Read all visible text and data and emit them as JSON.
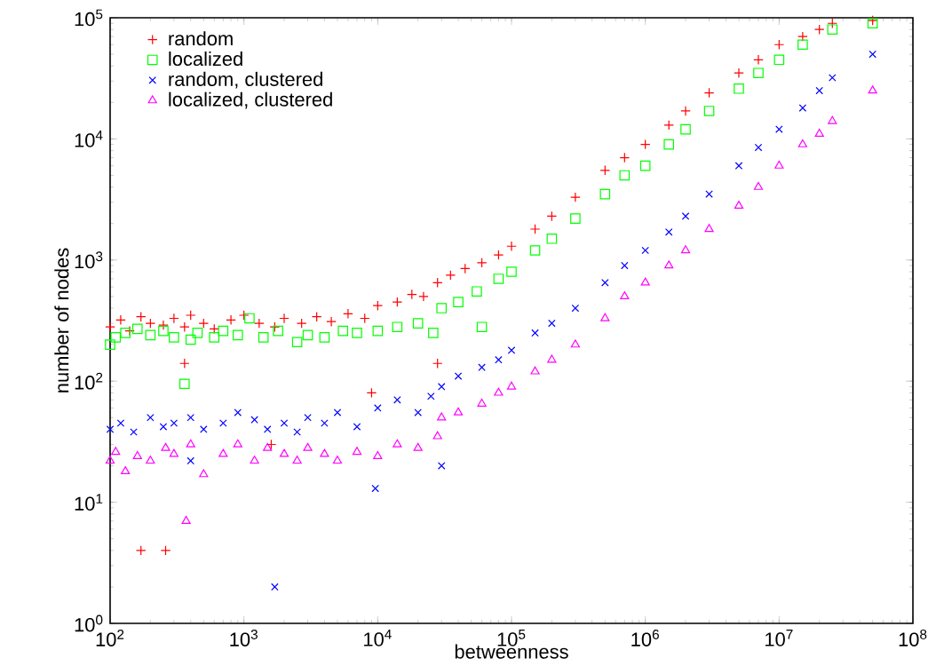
{
  "chart_data": {
    "type": "scatter",
    "xlabel": "betweenness",
    "ylabel": "number of nodes",
    "log": "xy",
    "legend": "top left",
    "xlim": [
      100,
      100000000
    ],
    "ylim": [
      1,
      100000
    ],
    "xticks": [
      {
        "value": 100,
        "label": "10$^{2}$"
      },
      {
        "value": 1000,
        "label": "10$^{3}$"
      },
      {
        "value": 10000,
        "label": "10$^{4}$"
      },
      {
        "value": 100000,
        "label": "10$^{5}$"
      },
      {
        "value": 1000000,
        "label": "10$^{6}$"
      },
      {
        "value": 10000000,
        "label": "10$^{7}$"
      },
      {
        "value": 100000000,
        "label": "10$^{8}$"
      }
    ],
    "yticks": [
      {
        "value": 1,
        "label": "10$^{0}$"
      },
      {
        "value": 10,
        "label": "10$^{1}$"
      },
      {
        "value": 100,
        "label": "10$^{2}$"
      },
      {
        "value": 1000,
        "label": "10$^{3}$"
      },
      {
        "value": 10000,
        "label": "10$^{4}$"
      },
      {
        "value": 100000,
        "label": "10$^{5}$"
      }
    ],
    "series": [
      {
        "name": "random",
        "color": "#ff0000",
        "marker": "plus",
        "x": [
          100,
          120,
          140,
          170,
          200,
          250,
          300,
          360,
          400,
          500,
          600,
          800,
          1000,
          1300,
          1700,
          2000,
          2700,
          3500,
          4500,
          6000,
          8000,
          10000,
          14000,
          18000,
          22000,
          28000,
          35000,
          45000,
          60000,
          80000,
          100000,
          150000,
          200000,
          300000,
          500000,
          700000,
          1000000,
          1500000,
          2000000,
          3000000,
          5000000,
          7000000,
          10000000,
          15000000,
          20000000,
          25000000,
          50000000,
          170,
          260,
          360,
          1600,
          9000,
          28000
        ],
        "values": [
          280,
          320,
          260,
          340,
          300,
          290,
          330,
          280,
          350,
          300,
          270,
          320,
          350,
          300,
          280,
          330,
          300,
          340,
          310,
          360,
          330,
          420,
          450,
          520,
          500,
          650,
          750,
          850,
          950,
          1100,
          1300,
          1800,
          2300,
          3300,
          5500,
          7000,
          9000,
          13000,
          17000,
          24000,
          35000,
          45000,
          60000,
          70000,
          80000,
          90000,
          95000,
          4,
          4,
          140,
          30,
          80,
          140
        ]
      },
      {
        "name": "localized",
        "color": "#00ff00",
        "marker": "square",
        "x": [
          100,
          110,
          130,
          160,
          200,
          250,
          300,
          400,
          450,
          600,
          700,
          900,
          1100,
          1400,
          1800,
          2500,
          3000,
          4000,
          5500,
          7000,
          10000,
          14000,
          20000,
          26000,
          30000,
          40000,
          55000,
          60000,
          80000,
          100000,
          150000,
          200000,
          300000,
          500000,
          700000,
          1000000,
          1500000,
          2000000,
          3000000,
          5000000,
          7000000,
          10000000,
          15000000,
          25000000,
          50000000,
          360
        ],
        "values": [
          200,
          230,
          250,
          270,
          240,
          260,
          230,
          220,
          250,
          230,
          260,
          240,
          330,
          230,
          260,
          210,
          240,
          230,
          260,
          250,
          260,
          280,
          300,
          250,
          400,
          450,
          550,
          280,
          700,
          800,
          1200,
          1500,
          2200,
          3500,
          5000,
          6000,
          9000,
          12000,
          17000,
          26000,
          35000,
          45000,
          60000,
          80000,
          90000,
          95
        ]
      },
      {
        "name": "random, clustered",
        "color": "#0000ff",
        "marker": "x",
        "x": [
          100,
          120,
          150,
          200,
          250,
          300,
          400,
          500,
          700,
          900,
          1200,
          1500,
          2000,
          2500,
          3000,
          4000,
          5000,
          7000,
          10000,
          14000,
          20000,
          25000,
          30000,
          40000,
          60000,
          80000,
          100000,
          150000,
          200000,
          300000,
          500000,
          700000,
          1000000,
          1500000,
          2000000,
          3000000,
          5000000,
          7000000,
          10000000,
          15000000,
          20000000,
          25000000,
          50000000,
          9600,
          1700,
          30000,
          400
        ],
        "values": [
          40,
          45,
          38,
          50,
          42,
          45,
          50,
          40,
          45,
          55,
          48,
          40,
          45,
          38,
          50,
          45,
          55,
          42,
          60,
          70,
          55,
          75,
          90,
          110,
          130,
          150,
          180,
          250,
          300,
          400,
          650,
          900,
          1200,
          1700,
          2300,
          3500,
          6000,
          8500,
          12000,
          18000,
          25000,
          32000,
          50000,
          13,
          2,
          20,
          22
        ]
      },
      {
        "name": "localized, clustered",
        "color": "#ff00ff",
        "marker": "triangle",
        "x": [
          100,
          110,
          130,
          160,
          200,
          260,
          300,
          400,
          500,
          700,
          900,
          1200,
          1500,
          2000,
          2500,
          3000,
          4000,
          5000,
          7000,
          10000,
          14000,
          20000,
          28000,
          30000,
          40000,
          60000,
          80000,
          100000,
          150000,
          200000,
          300000,
          500000,
          700000,
          1000000,
          1500000,
          2000000,
          3000000,
          5000000,
          7000000,
          10000000,
          15000000,
          20000000,
          25000000,
          50000000,
          370
        ],
        "values": [
          22,
          26,
          18,
          24,
          22,
          28,
          25,
          30,
          17,
          25,
          30,
          22,
          28,
          25,
          22,
          28,
          25,
          22,
          26,
          24,
          30,
          28,
          35,
          50,
          55,
          65,
          80,
          90,
          120,
          150,
          200,
          330,
          500,
          650,
          900,
          1200,
          1800,
          2800,
          4000,
          6000,
          9000,
          11000,
          14000,
          25000,
          7
        ]
      }
    ]
  }
}
